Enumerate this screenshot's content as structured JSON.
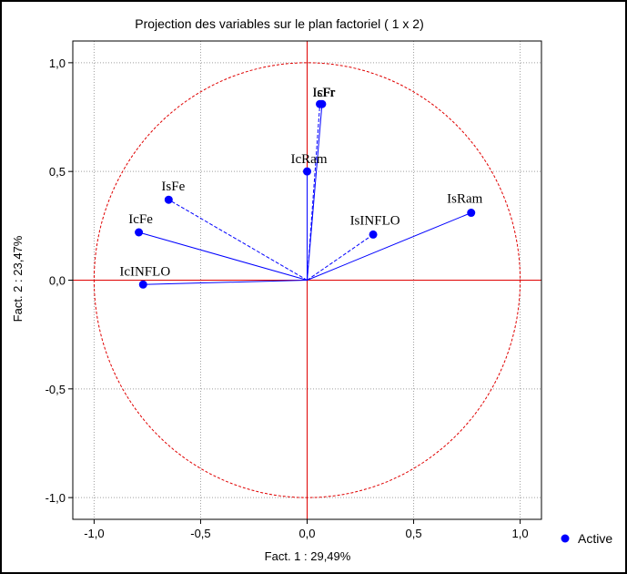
{
  "chart_data": {
    "type": "scatter",
    "title": "Projection des variables sur le plan factoriel ( 1 x 2)",
    "xlabel": "Fact. 1 : 29,49%",
    "ylabel": "Fact. 2 : 23,47%",
    "xlim": [
      -1.1,
      1.1
    ],
    "ylim": [
      -1.1,
      1.1
    ],
    "x_ticks": [
      {
        "value": -1.0,
        "label": "-1,0"
      },
      {
        "value": -0.5,
        "label": "-0,5"
      },
      {
        "value": 0.0,
        "label": "0,0"
      },
      {
        "value": 0.5,
        "label": "0,5"
      },
      {
        "value": 1.0,
        "label": "1,0"
      }
    ],
    "y_ticks": [
      {
        "value": 1.0,
        "label": "1,0"
      },
      {
        "value": 0.5,
        "label": "0,5"
      },
      {
        "value": 0.0,
        "label": "0,0"
      },
      {
        "value": -0.5,
        "label": "-0,5"
      },
      {
        "value": -1.0,
        "label": "-1,0"
      }
    ],
    "grid": true,
    "unit_circle": true,
    "legend": {
      "position": "bottom-right",
      "entries": [
        {
          "label": "Active",
          "color": "#0000ff"
        }
      ]
    },
    "series": [
      {
        "name": "Active",
        "color": "#0000ff",
        "points": [
          {
            "label": "IsFr",
            "x": 0.06,
            "y": 0.81,
            "line": "dashed"
          },
          {
            "label": "IcFr",
            "x": 0.07,
            "y": 0.81,
            "line": "solid"
          },
          {
            "label": "IcRam",
            "x": 0.0,
            "y": 0.5,
            "line": "solid"
          },
          {
            "label": "IsFe",
            "x": -0.65,
            "y": 0.37,
            "line": "dashed"
          },
          {
            "label": "IcFe",
            "x": -0.79,
            "y": 0.22,
            "line": "solid"
          },
          {
            "label": "IsINFLO",
            "x": 0.31,
            "y": 0.21,
            "line": "dashed"
          },
          {
            "label": "IsRam",
            "x": 0.77,
            "y": 0.31,
            "line": "solid"
          },
          {
            "label": "IcINFLO",
            "x": -0.77,
            "y": -0.02,
            "line": "solid"
          }
        ]
      }
    ],
    "colors": {
      "circle": "#e00000",
      "axes": "#e00000",
      "points": "#0000ff",
      "grid": "#a0a0a0"
    }
  }
}
